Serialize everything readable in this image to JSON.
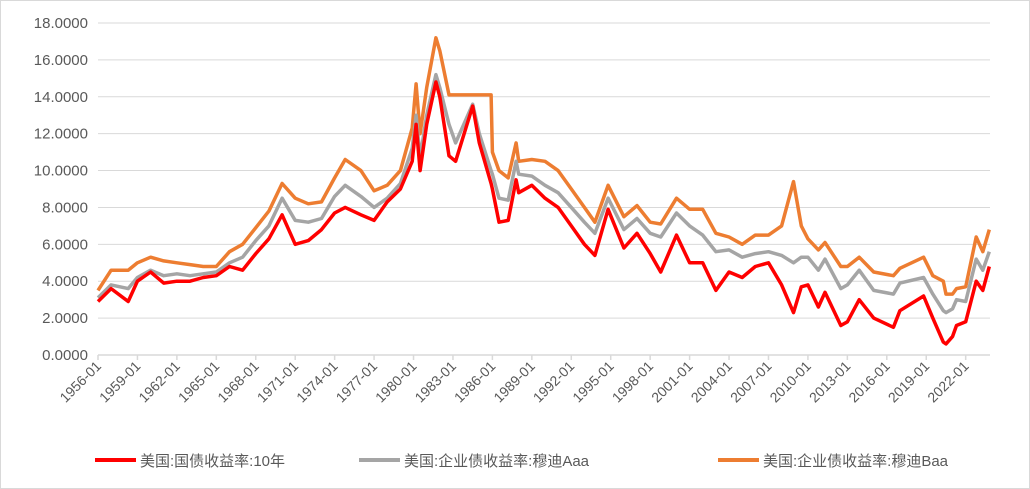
{
  "chart_data": {
    "type": "line",
    "title": "",
    "xlabel": "",
    "ylabel": "",
    "ylim": [
      0,
      18
    ],
    "yticks": [
      "0.0000",
      "2.0000",
      "4.0000",
      "6.0000",
      "8.0000",
      "10.0000",
      "12.0000",
      "14.0000",
      "16.0000",
      "18.0000"
    ],
    "xticks": [
      "1956-01",
      "1959-01",
      "1962-01",
      "1965-01",
      "1968-01",
      "1971-01",
      "1974-01",
      "1977-01",
      "1980-01",
      "1983-01",
      "1986-01",
      "1989-01",
      "1992-01",
      "1995-01",
      "1998-01",
      "2001-01",
      "2004-01",
      "2007-01",
      "2010-01",
      "2013-01",
      "2016-01",
      "2019-01",
      "2022-01"
    ],
    "xlim": [
      1956.0,
      2023.85
    ],
    "grid": true,
    "legend_position": "bottom",
    "x": [
      1956,
      1957,
      1958.3,
      1959,
      1960,
      1961,
      1962,
      1963,
      1964,
      1965,
      1966,
      1967,
      1968,
      1969,
      1970,
      1971,
      1972,
      1973,
      1974,
      1974.8,
      1976,
      1977,
      1978,
      1979,
      1979.9,
      1980.2,
      1980.5,
      1981,
      1981.7,
      1982,
      1982.7,
      1983.2,
      1984.5,
      1985,
      1985.9,
      1986.0,
      1986.5,
      1987.2,
      1987.8,
      1988,
      1989,
      1990,
      1991,
      1992,
      1993,
      1993.8,
      1994.8,
      1996,
      1997,
      1998,
      1998.8,
      2000,
      2001,
      2002,
      2003,
      2004,
      2005,
      2006,
      2007,
      2008,
      2008.9,
      2009.5,
      2010,
      2010.8,
      2011.3,
      2012.5,
      2013,
      2013.9,
      2015,
      2016.5,
      2017,
      2018.8,
      2019.5,
      2020.3,
      2020.5,
      2021,
      2021.3,
      2022,
      2022.8,
      2023.3,
      2023.8
    ],
    "series": [
      {
        "name": "美国:国债收益率:10年",
        "color": "#ff0000",
        "values": [
          2.9,
          3.6,
          2.9,
          4.0,
          4.5,
          3.9,
          4.0,
          4.0,
          4.2,
          4.3,
          4.8,
          4.6,
          5.5,
          6.3,
          7.6,
          6.0,
          6.2,
          6.8,
          7.7,
          8.0,
          7.6,
          7.3,
          8.3,
          9.0,
          10.5,
          12.5,
          10.0,
          12.5,
          14.8,
          14.0,
          10.8,
          10.5,
          13.5,
          11.5,
          9.3,
          9.0,
          7.2,
          7.3,
          9.5,
          8.8,
          9.2,
          8.5,
          8.0,
          7.0,
          6.0,
          5.4,
          7.9,
          5.8,
          6.6,
          5.5,
          4.5,
          6.5,
          5.0,
          5.0,
          3.5,
          4.5,
          4.2,
          4.8,
          5.0,
          3.8,
          2.3,
          3.7,
          3.8,
          2.6,
          3.4,
          1.6,
          1.8,
          3.0,
          2.0,
          1.5,
          2.4,
          3.2,
          2.0,
          0.7,
          0.6,
          1.0,
          1.6,
          1.8,
          4.0,
          3.5,
          4.8
        ]
      },
      {
        "name": "美国:企业债收益率:穆迪Aaa",
        "color": "#a5a5a5",
        "values": [
          3.1,
          3.8,
          3.6,
          4.2,
          4.6,
          4.3,
          4.4,
          4.3,
          4.4,
          4.5,
          5.0,
          5.3,
          6.2,
          7.0,
          8.5,
          7.3,
          7.2,
          7.4,
          8.6,
          9.2,
          8.6,
          8.0,
          8.5,
          9.3,
          11.2,
          13.0,
          10.7,
          13.0,
          15.2,
          14.5,
          12.5,
          11.5,
          13.6,
          12.0,
          10.0,
          9.8,
          8.5,
          8.4,
          10.5,
          9.8,
          9.7,
          9.2,
          8.8,
          8.0,
          7.2,
          6.6,
          8.5,
          6.8,
          7.4,
          6.6,
          6.4,
          7.7,
          7.0,
          6.5,
          5.6,
          5.7,
          5.3,
          5.5,
          5.6,
          5.4,
          5.0,
          5.3,
          5.3,
          4.6,
          5.2,
          3.6,
          3.8,
          4.6,
          3.5,
          3.3,
          3.9,
          4.2,
          3.3,
          2.4,
          2.3,
          2.5,
          3.0,
          2.9,
          5.2,
          4.6,
          5.6
        ]
      },
      {
        "name": "美国:企业债收益率:穆迪Baa",
        "color": "#ed7d31",
        "values": [
          3.5,
          4.6,
          4.6,
          5.0,
          5.3,
          5.1,
          5.0,
          4.9,
          4.8,
          4.8,
          5.6,
          6.0,
          6.9,
          7.8,
          9.3,
          8.5,
          8.2,
          8.3,
          9.6,
          10.6,
          10.0,
          8.9,
          9.2,
          10.0,
          12.3,
          14.7,
          12.0,
          14.5,
          17.2,
          16.5,
          14.1,
          14.1,
          14.1,
          14.1,
          14.1,
          11.0,
          10.0,
          9.6,
          11.5,
          10.5,
          10.6,
          10.5,
          10.0,
          9.0,
          8.0,
          7.2,
          9.2,
          7.5,
          8.1,
          7.2,
          7.1,
          8.5,
          7.9,
          7.9,
          6.6,
          6.4,
          6.0,
          6.5,
          6.5,
          7.0,
          9.4,
          7.0,
          6.3,
          5.7,
          6.1,
          4.8,
          4.8,
          5.3,
          4.5,
          4.3,
          4.7,
          5.3,
          4.3,
          4.0,
          3.3,
          3.3,
          3.6,
          3.7,
          6.4,
          5.6,
          6.8
        ]
      }
    ]
  }
}
